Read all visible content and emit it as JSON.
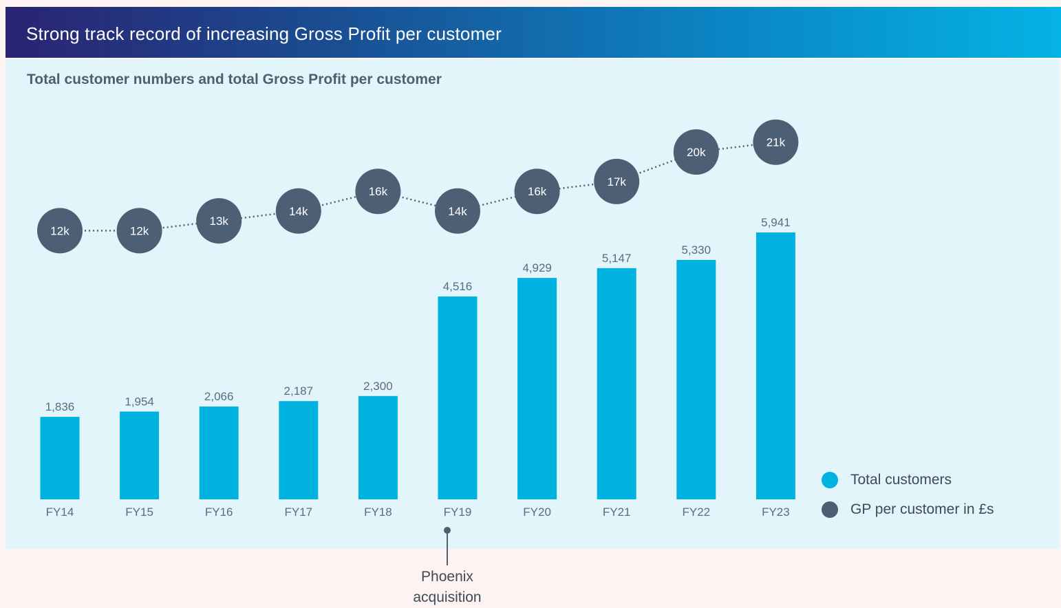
{
  "header": {
    "title": "Strong track record of increasing Gross Profit per customer"
  },
  "colors": {
    "bars": "#00b2e0",
    "dots": "#4c5f75",
    "panel": "#e2f5fb"
  },
  "chart_data": {
    "type": "bar",
    "title": "Total customer numbers and total Gross Profit per customer",
    "categories": [
      "FY14",
      "FY15",
      "FY16",
      "FY17",
      "FY18",
      "FY19",
      "FY20",
      "FY21",
      "FY22",
      "FY23"
    ],
    "series": [
      {
        "name": "Total customers",
        "type": "bar",
        "values": [
          1836,
          1954,
          2066,
          2187,
          2300,
          4516,
          4929,
          5147,
          5330,
          5941
        ],
        "labels": [
          "1,836",
          "1,954",
          "2,066",
          "2,187",
          "2,300",
          "4,516",
          "4,929",
          "5,147",
          "5,330",
          "5,941"
        ]
      },
      {
        "name": "GP per customer in £s",
        "type": "line",
        "values": [
          12,
          12,
          13,
          14,
          16,
          14,
          16,
          17,
          20,
          21
        ],
        "labels": [
          "12k",
          "12k",
          "13k",
          "14k",
          "16k",
          "14k",
          "16k",
          "17k",
          "20k",
          "21k"
        ]
      }
    ],
    "annotation": {
      "category": "FY18-FY19",
      "text": "Phoenix\nacquisition"
    },
    "legend_position": "right",
    "grid": false
  }
}
